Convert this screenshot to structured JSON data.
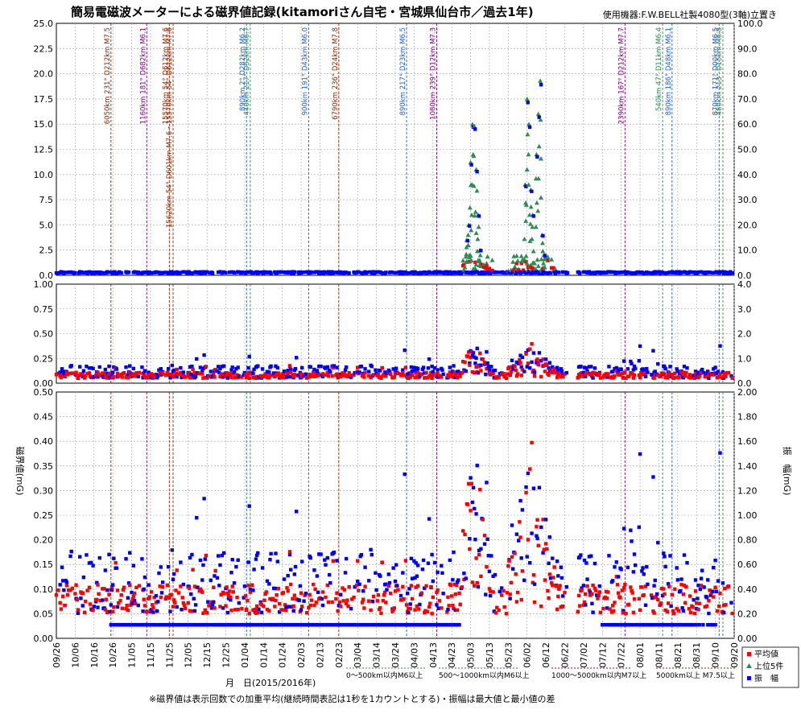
{
  "title": "簡易電磁波メーターによる磁界値記録(kitamoriさん自宅・宮城県仙台市／過去1年)",
  "device": "使用機器:F.W.BELL社製4080型(3軸)立置き",
  "footer_note": "※磁界値は表示回数での加重平均(継続時間表記は1秒を1カウントとする)・振幅は最大値と最小値の差",
  "xlabel": "月　日(2015/2016年)",
  "ylabel_left": "磁界値(mG)",
  "ylabel_right": "振　幅(mG)",
  "colors": {
    "average": "#ff0000",
    "top5": "#2e8b57",
    "amplitude": "#0000ff",
    "ann_brown": "#8b2500",
    "ann_purple": "#800080",
    "ann_blue": "#1e5fd6",
    "ann_green": "#2e8b57"
  },
  "legend": {
    "average": "平均値",
    "top5": "上位5件",
    "amplitude": "振　幅"
  },
  "quake_categories": [
    {
      "label": "0～500km以内M6以上"
    },
    {
      "label": "500～1000km以内M6以上"
    },
    {
      "label": "1000～5000km以内M7以上"
    },
    {
      "label": "5000km以上 M7.5以上"
    }
  ],
  "chart_data": {
    "type": "scatter",
    "x_ticks": [
      "09/26",
      "10/06",
      "10/16",
      "10/26",
      "11/05",
      "11/15",
      "11/25",
      "12/05",
      "12/15",
      "12/25",
      "01/04",
      "01/14",
      "01/24",
      "02/03",
      "02/13",
      "02/23",
      "03/04",
      "03/14",
      "03/24",
      "04/03",
      "04/13",
      "04/23",
      "05/03",
      "05/13",
      "05/23",
      "06/02",
      "06/12",
      "06/22",
      "07/02",
      "07/12",
      "07/22",
      "08/01",
      "08/11",
      "08/21",
      "08/31",
      "09/10",
      "09/20"
    ],
    "x_range_days": [
      0,
      360
    ],
    "panels": [
      {
        "name": "top",
        "ylim_left": [
          0,
          25
        ],
        "ylim_right": [
          0,
          100
        ],
        "left_ticks": [
          "0.0",
          "2.5",
          "5.0",
          "7.5",
          "10.0",
          "12.5",
          "15.0",
          "17.5",
          "20.0",
          "22.5",
          "25.0"
        ],
        "right_ticks": [
          "0.0",
          "10.0",
          "20.0",
          "30.0",
          "40.0",
          "50.0",
          "60.0",
          "70.0",
          "80.0",
          "90.0",
          "100.0"
        ]
      },
      {
        "name": "middle",
        "ylim_left": [
          0,
          1
        ],
        "ylim_right": [
          0,
          4
        ],
        "left_ticks": [
          "0.00",
          "0.25",
          "0.50",
          "0.75",
          "1.00"
        ],
        "right_ticks": [
          "0.0",
          "1.0",
          "2.0",
          "3.0",
          "4.0"
        ]
      },
      {
        "name": "bottom",
        "ylim_left": [
          0,
          0.5
        ],
        "ylim_right": [
          0,
          2
        ],
        "left_ticks": [
          "0.00",
          "0.05",
          "0.10",
          "0.15",
          "0.20",
          "0.25",
          "0.30",
          "0.35",
          "0.40",
          "0.45",
          "0.50"
        ],
        "right_ticks": [
          "0.00",
          "0.20",
          "0.40",
          "0.60",
          "0.80",
          "1.00",
          "1.20",
          "1.40",
          "1.60",
          "1.80",
          "2.00"
        ]
      }
    ],
    "earthquakes": [
      {
        "day": 29,
        "color": "ann_brown",
        "label": "6050km 231° D212km M7.5"
      },
      {
        "day": 48,
        "color": "ann_purple",
        "label": "1160km 181° D682km M6.1"
      },
      {
        "day": 60,
        "color": "ann_brown",
        "label": "15570km 54° D612km M7.6"
      },
      {
        "day": 62,
        "color": "ann_brown",
        "label": "15620km 54° D601km M7.6・15570km 54° D612km M7.6"
      },
      {
        "day": 101,
        "color": "ann_blue",
        "label": "890km 2° D282km M6.2"
      },
      {
        "day": 103,
        "color": "ann_green",
        "label": "440km 217° D52km M6.7"
      },
      {
        "day": 134,
        "color": "ann_blue",
        "label": "900km 191° D43km M6.0"
      },
      {
        "day": 150,
        "color": "ann_brown",
        "label": "6790km 236° D24km M7.8"
      },
      {
        "day": 186,
        "color": "ann_blue",
        "label": "890km 217° D23km M6.5"
      },
      {
        "day": 202,
        "color": "ann_purple",
        "label": "1080km 239° D12km M7.3"
      },
      {
        "day": 302,
        "color": "ann_purple",
        "label": "2390km 167° D212km M7.7"
      },
      {
        "day": 322,
        "color": "ann_green",
        "label": "540km 47° D11km M6.4"
      },
      {
        "day": 327,
        "color": "ann_blue",
        "label": "890km 186° D48km M6.1"
      },
      {
        "day": 352,
        "color": "ann_blue",
        "label": "870km 171° D00km M6.5"
      },
      {
        "day": 354,
        "color": "ann_green",
        "label": "480km 213° D15km M6.8"
      }
    ],
    "series": [
      {
        "name": "平均値",
        "note": "red squares, mostly 0.05–0.15 mG; peaks to ~0.5 mG during 04/28–06/20"
      },
      {
        "name": "上位5件",
        "note": "green triangles in top panel; spikes to ~15 mG (05/05) and ~19 mG (06/08)"
      },
      {
        "name": "振　幅",
        "note": "blue squares, mostly 0.1–0.6 mG; base band at ~0.11 mG"
      }
    ]
  }
}
